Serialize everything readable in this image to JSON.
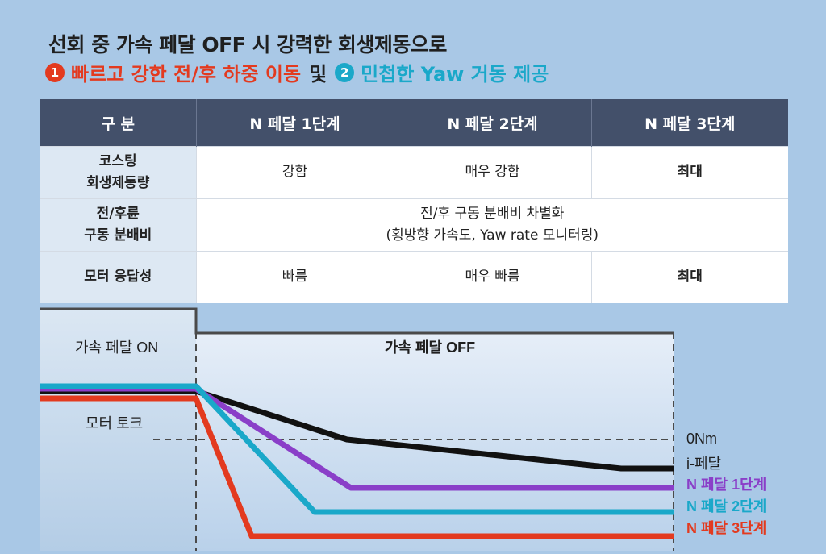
{
  "title": {
    "line1": "선회 중 가속 페달 OFF 시 강력한 회생제동으로",
    "item1_num": "1",
    "item1_text": "빠르고 강한 전/후 하중 이동",
    "connector": "및",
    "item2_num": "2",
    "item2_text": "민첩한 Yaw 거동 제공"
  },
  "colors": {
    "red": "#e33a1f",
    "teal": "#1aa8c9",
    "purple": "#8a3fc8",
    "black": "#111111",
    "header": "#43506a"
  },
  "table": {
    "headers": [
      "구 분",
      "N 페달 1단계",
      "N 페달 2단계",
      "N 페달 3단계"
    ],
    "rows": [
      {
        "label": [
          "코스팅",
          "회생제동량"
        ],
        "cells": [
          "강함",
          "매우 강함",
          "최대"
        ]
      },
      {
        "label": [
          "전/후륜",
          "구동 분배비"
        ],
        "merged": [
          "전/후 구동 분배비 차별화",
          "(횡방향 가속도, Yaw rate 모니터링)"
        ]
      },
      {
        "label": [
          "모터 응답성"
        ],
        "cells": [
          "빠름",
          "매우 빠름",
          "최대"
        ]
      }
    ]
  },
  "chart_data": {
    "type": "line",
    "regions": [
      "가속 페달 ON",
      "가속 페달 OFF"
    ],
    "ylabel": "모터 토크",
    "reference_label": "0Nm",
    "x": [
      0,
      1,
      2,
      3,
      4
    ],
    "series": [
      {
        "name": "i-페달",
        "color": "#111111",
        "values": [
          1.0,
          1.0,
          0.0,
          -0.6,
          -0.6
        ]
      },
      {
        "name": "N 페달 1단계",
        "color": "#8a3fc8",
        "values": [
          1.05,
          1.05,
          -1.0,
          -1.0,
          -1.0
        ]
      },
      {
        "name": "N 페달 2단계",
        "color": "#1aa8c9",
        "values": [
          1.1,
          1.1,
          -1.5,
          -1.5,
          -1.5
        ]
      },
      {
        "name": "N 페달 3단계",
        "color": "#e33a1f",
        "values": [
          0.85,
          0.85,
          -2.0,
          -2.0,
          -2.0
        ]
      }
    ]
  }
}
